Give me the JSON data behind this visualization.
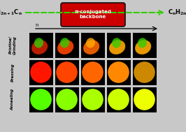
{
  "bg_color": "#c8c8c8",
  "title_box_color": "#cc0000",
  "title_text": "π-conjugated\nbackbone",
  "arrow_color": "#33cc00",
  "row_labels": [
    "Pristine/\nGrinding",
    "Pressing",
    "Annealing"
  ],
  "n_columns": 5,
  "pressing_colors": [
    "#ff1500",
    "#ff4400",
    "#ff6600",
    "#ff8800",
    "#cc8800"
  ],
  "annealing_colors": [
    "#55ff00",
    "#88ff00",
    "#aaff00",
    "#ccff00",
    "#eeff00"
  ],
  "cell_bg": "#000000",
  "pristine_blob1_colors": [
    "#cc2200",
    "#ff4400",
    "#ff6600",
    "#ffaa00",
    "#ffaa00"
  ],
  "pristine_blob2_colors": [
    "#33cc00",
    "#33cc00",
    "#ffaa00",
    "#33cc00",
    "#33cc00"
  ]
}
